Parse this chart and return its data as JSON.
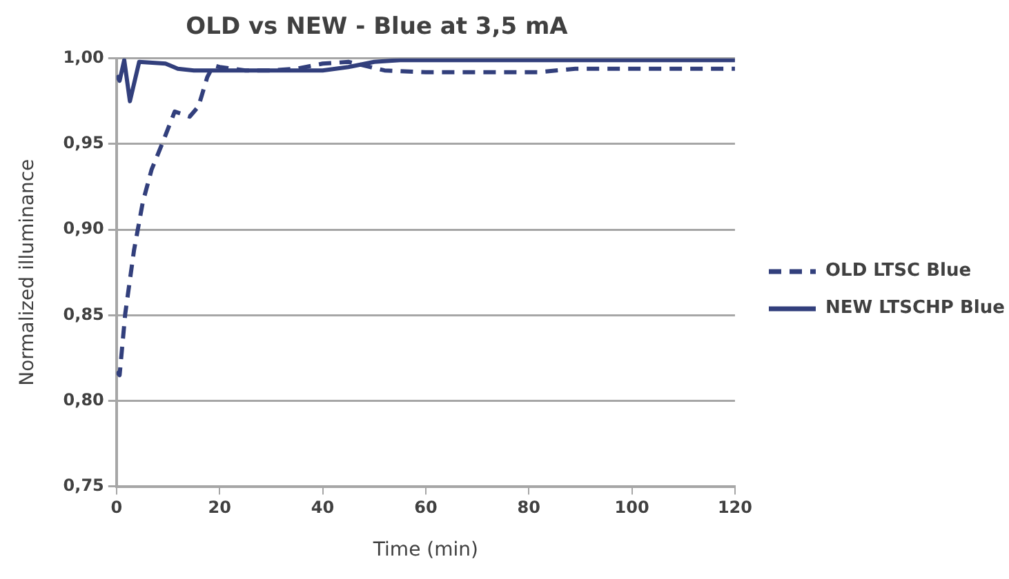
{
  "chart_data": {
    "type": "line",
    "title": "OLD vs NEW - Blue at 3,5 mA",
    "xlabel": "Time (min)",
    "ylabel": "Normalized illuminance",
    "series": [
      {
        "name": "OLD LTSC Blue",
        "color": "#323f7c",
        "line_style": "dashed",
        "x": [
          0,
          0.6,
          1.7,
          3.4,
          5.1,
          6.8,
          9.1,
          11.3,
          14.2,
          15.9,
          17.6,
          18.8,
          20,
          25,
          30,
          35,
          40,
          45,
          52,
          60,
          70,
          82,
          89,
          100,
          110,
          120
        ],
        "values": [
          0.817,
          0.815,
          0.851,
          0.888,
          0.916,
          0.935,
          0.952,
          0.969,
          0.966,
          0.972,
          0.989,
          0.996,
          0.995,
          0.993,
          0.993,
          0.994,
          0.997,
          0.998,
          0.993,
          0.992,
          0.992,
          0.992,
          0.994,
          0.994,
          0.994,
          0.994
        ]
      },
      {
        "name": "NEW LTSCHP Blue",
        "color": "#323f7c",
        "line_style": "solid",
        "x": [
          0,
          0.6,
          1.5,
          2.6,
          4.4,
          9.5,
          11.9,
          15,
          20,
          25,
          30,
          35,
          40,
          45,
          50,
          55,
          60,
          80,
          100,
          120
        ],
        "values": [
          0.99,
          0.987,
          0.999,
          0.975,
          0.998,
          0.997,
          0.994,
          0.993,
          0.993,
          0.993,
          0.993,
          0.993,
          0.993,
          0.995,
          0.998,
          0.999,
          0.999,
          0.999,
          0.999,
          0.999
        ]
      }
    ],
    "xlim": [
      0,
      120
    ],
    "xticks": [
      0,
      20,
      40,
      60,
      80,
      100,
      120
    ],
    "ylim": [
      0.75,
      1.0
    ],
    "yticks": [
      {
        "value": 0.75,
        "label": "0,75"
      },
      {
        "value": 0.8,
        "label": "0,80"
      },
      {
        "value": 0.85,
        "label": "0,85"
      },
      {
        "value": 0.9,
        "label": "0,90"
      },
      {
        "value": 0.95,
        "label": "0,95"
      },
      {
        "value": 1.0,
        "label": "1,00"
      }
    ],
    "grid": "y",
    "legend": "right",
    "marker": "none"
  }
}
